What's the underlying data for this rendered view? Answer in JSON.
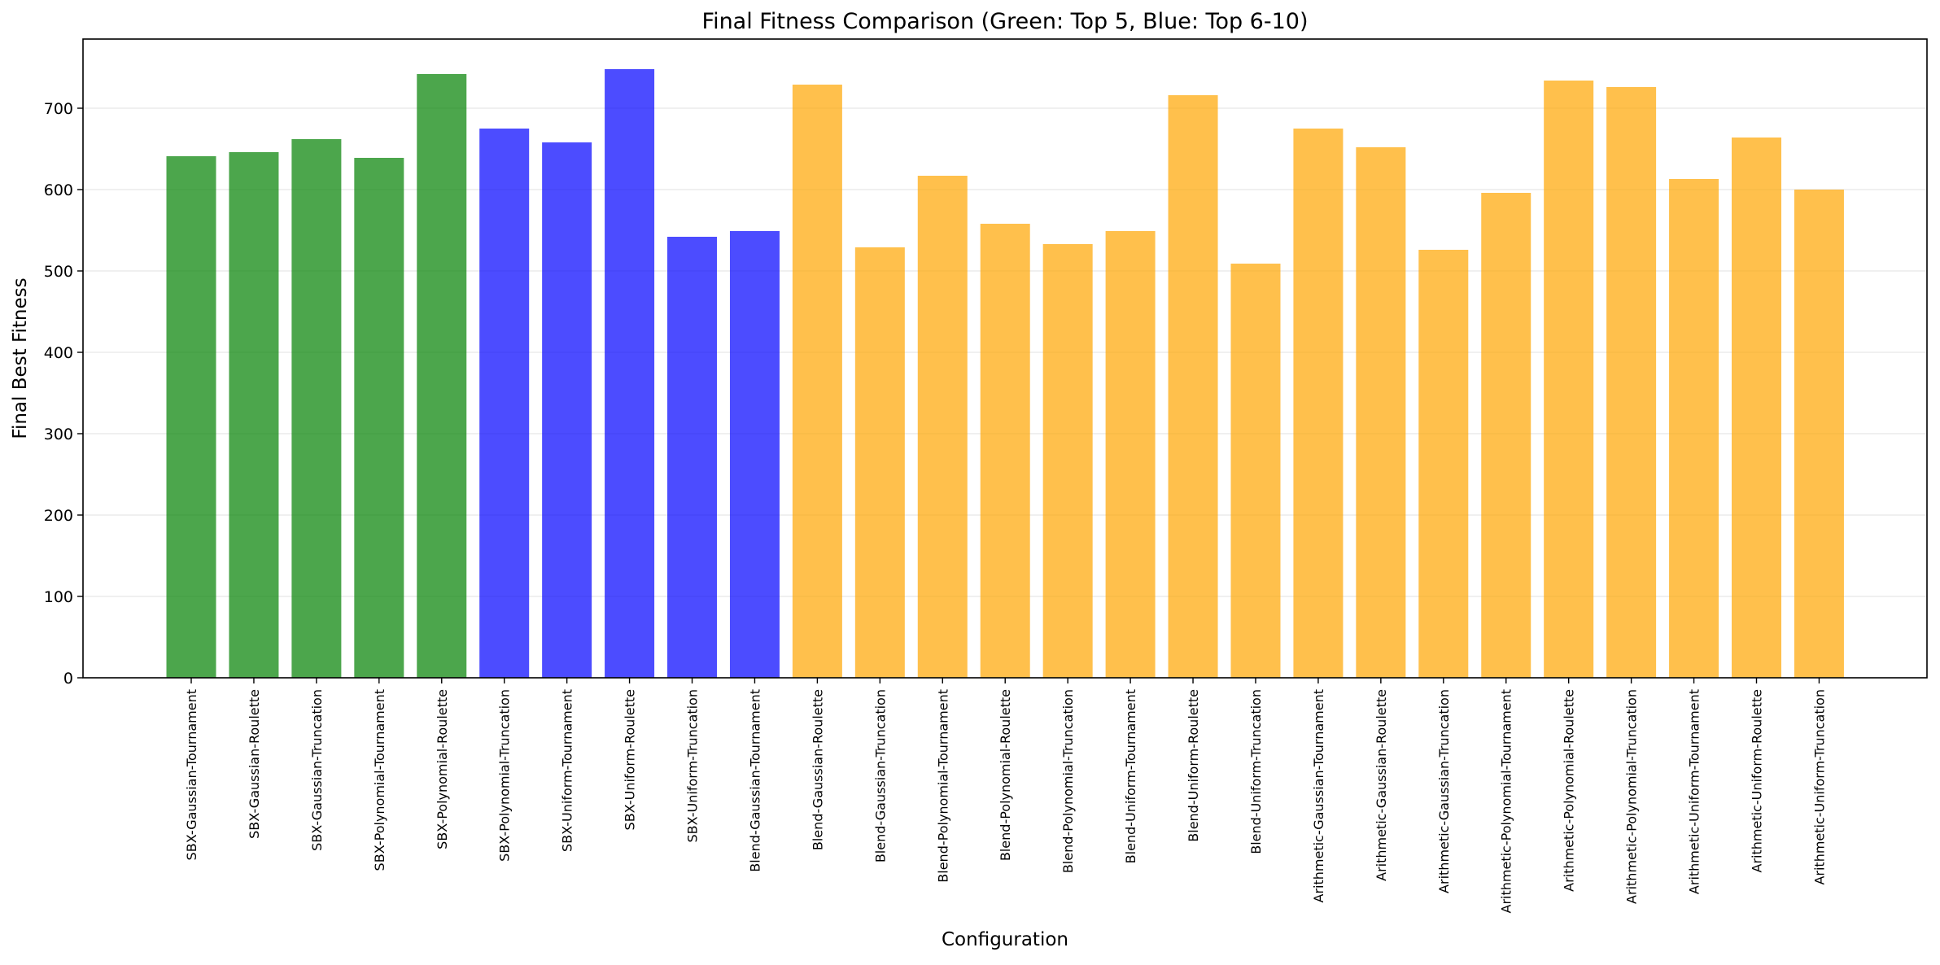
{
  "chart_data": {
    "type": "bar",
    "title": "Final Fitness Comparison (Green: Top 5, Blue: Top 6-10)",
    "xlabel": "Configuration",
    "ylabel": "Final Best Fitness",
    "ylim": [
      0,
      785
    ],
    "yticks": [
      0,
      100,
      200,
      300,
      400,
      500,
      600,
      700
    ],
    "grid": "horizontal",
    "colors": {
      "top5": "#008000",
      "top6_10": "#0000ff",
      "other": "#ffa500",
      "opacity": 0.7
    },
    "categories": [
      "SBX-Gaussian-Tournament",
      "SBX-Gaussian-Roulette",
      "SBX-Gaussian-Truncation",
      "SBX-Polynomial-Tournament",
      "SBX-Polynomial-Roulette",
      "SBX-Polynomial-Truncation",
      "SBX-Uniform-Tournament",
      "SBX-Uniform-Roulette",
      "SBX-Uniform-Truncation",
      "Blend-Gaussian-Tournament",
      "Blend-Gaussian-Roulette",
      "Blend-Gaussian-Truncation",
      "Blend-Polynomial-Tournament",
      "Blend-Polynomial-Roulette",
      "Blend-Polynomial-Truncation",
      "Blend-Uniform-Tournament",
      "Blend-Uniform-Roulette",
      "Blend-Uniform-Truncation",
      "Arithmetic-Gaussian-Tournament",
      "Arithmetic-Gaussian-Roulette",
      "Arithmetic-Gaussian-Truncation",
      "Arithmetic-Polynomial-Tournament",
      "Arithmetic-Polynomial-Roulette",
      "Arithmetic-Polynomial-Truncation",
      "Arithmetic-Uniform-Tournament",
      "Arithmetic-Uniform-Roulette",
      "Arithmetic-Uniform-Truncation"
    ],
    "values": [
      641,
      646,
      662,
      639,
      742,
      675,
      658,
      748,
      542,
      549,
      729,
      529,
      617,
      558,
      533,
      549,
      716,
      509,
      675,
      652,
      526,
      596,
      734,
      726,
      613,
      664,
      600
    ],
    "groups": [
      "top5",
      "top5",
      "top5",
      "top5",
      "top5",
      "top6_10",
      "top6_10",
      "top6_10",
      "top6_10",
      "top6_10",
      "other",
      "other",
      "other",
      "other",
      "other",
      "other",
      "other",
      "other",
      "other",
      "other",
      "other",
      "other",
      "other",
      "other",
      "other",
      "other",
      "other"
    ]
  }
}
